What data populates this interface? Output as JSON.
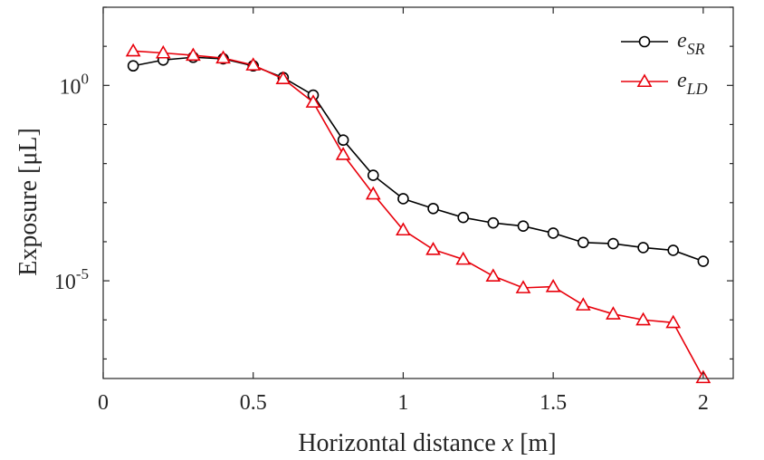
{
  "chart_data": {
    "type": "line",
    "xlabel": "Horizontal distance",
    "xlabel_var": "x",
    "xlabel_unit": "[m]",
    "ylabel": "Exposure [μL]",
    "xlim": [
      0,
      2.1
    ],
    "ylim_log10": [
      -7.5,
      2
    ],
    "yscale": "log",
    "grid": false,
    "legend_position": "top-right",
    "x_ticks": [
      {
        "value": 0,
        "label": "0"
      },
      {
        "value": 0.5,
        "label": "0.5"
      },
      {
        "value": 1,
        "label": "1"
      },
      {
        "value": 1.5,
        "label": "1.5"
      },
      {
        "value": 2,
        "label": "2"
      }
    ],
    "y_ticks": [
      {
        "exp": 0,
        "base": "10",
        "sup": "0"
      },
      {
        "exp": -5,
        "base": "10",
        "sup": "-5"
      }
    ],
    "x": [
      0.1,
      0.2,
      0.3,
      0.4,
      0.5,
      0.6,
      0.7,
      0.8,
      0.9,
      1.0,
      1.1,
      1.2,
      1.3,
      1.4,
      1.5,
      1.6,
      1.7,
      1.8,
      1.9,
      2.0
    ],
    "series": [
      {
        "name_main": "e",
        "name_sub": "SR",
        "color": "#000000",
        "marker": "circle",
        "log10_values": [
          0.5,
          0.65,
          0.72,
          0.68,
          0.5,
          0.2,
          -0.25,
          -1.4,
          -2.3,
          -2.9,
          -3.15,
          -3.38,
          -3.52,
          -3.6,
          -3.78,
          -4.02,
          -4.05,
          -4.15,
          -4.22,
          -4.5
        ]
      },
      {
        "name_main": "e",
        "name_sub": "LD",
        "color": "#e8000b",
        "marker": "triangle",
        "log10_values": [
          0.88,
          0.83,
          0.77,
          0.7,
          0.52,
          0.17,
          -0.43,
          -1.77,
          -2.78,
          -3.7,
          -4.2,
          -4.45,
          -4.88,
          -5.18,
          -5.15,
          -5.62,
          -5.85,
          -6.0,
          -6.07,
          -7.48
        ]
      }
    ]
  }
}
